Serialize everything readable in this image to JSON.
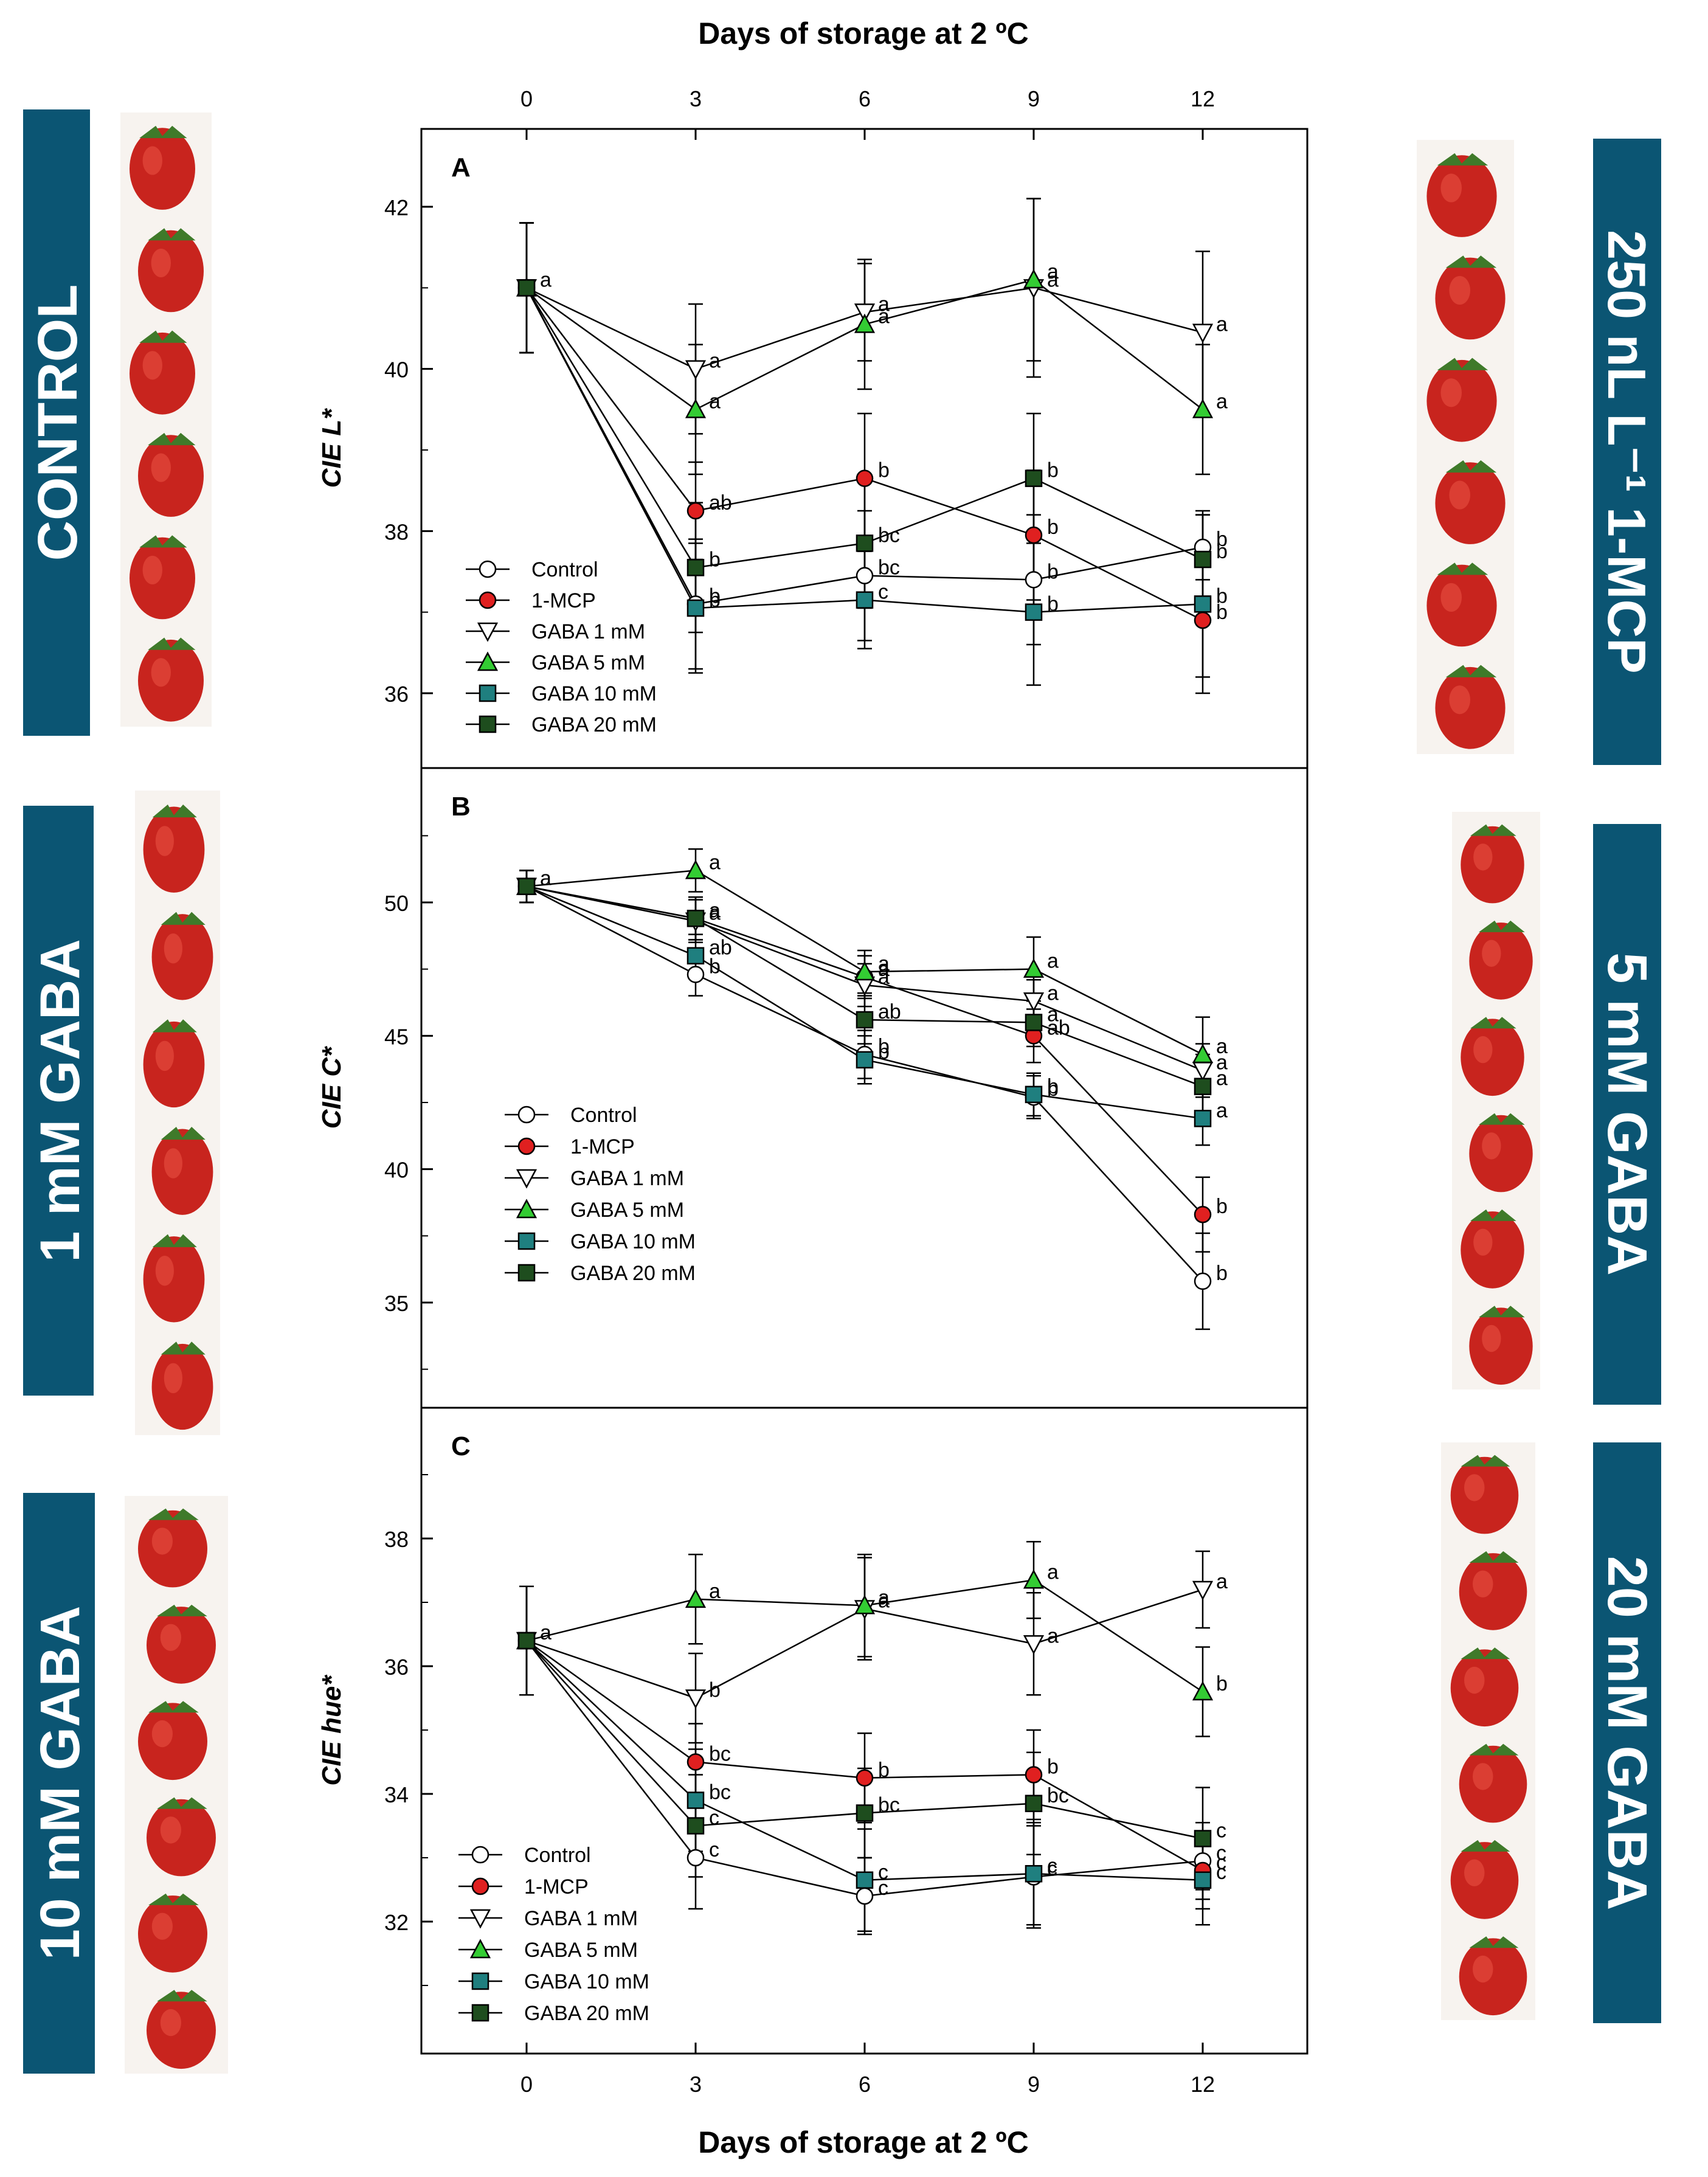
{
  "figure": {
    "top_axis_title": "Days of storage at 2 ºC",
    "bottom_axis_title": "Days of storage at 2 ºC"
  },
  "banners": [
    {
      "id": "control",
      "label": "CONTROL"
    },
    {
      "id": "mcp",
      "label": "250 nL L⁻¹ 1-MCP"
    },
    {
      "id": "gaba1",
      "label": "1 mM GABA"
    },
    {
      "id": "gaba5",
      "label": "5 mM GABA"
    },
    {
      "id": "gaba10",
      "label": "10 mM GABA"
    },
    {
      "id": "gaba20",
      "label": "20 mM GABA"
    }
  ],
  "colors": {
    "banner": "#0b5573",
    "control": "#ffffff",
    "mcp": "#e02020",
    "gaba1": "#ffffff",
    "gaba5": "#33cc33",
    "gaba10": "#1f7f7f",
    "gaba20": "#1e4d1e",
    "strawberry": "#c8241e"
  },
  "legend_labels": [
    "Control",
    "1-MCP",
    "GABA 1 mM",
    "GABA 5 mM",
    "GABA 10 mM",
    "GABA 20 mM"
  ],
  "chart_data": [
    {
      "type": "line",
      "panel": "A",
      "ylabel": "CIE L*",
      "x": [
        0,
        3,
        6,
        9,
        12
      ],
      "xticks": [
        "0",
        "3",
        "6",
        "9",
        "12"
      ],
      "ylim": [
        35,
        43
      ],
      "yticks": [
        "36",
        "38",
        "40",
        "42"
      ],
      "series": [
        {
          "name": "Control",
          "marker": "circle",
          "values": [
            41.0,
            37.1,
            37.45,
            37.4,
            37.8
          ],
          "err": [
            0.8,
            0.8,
            0.8,
            0.8,
            0.4
          ],
          "letters": [
            "a",
            "b",
            "bc",
            "b",
            "b"
          ]
        },
        {
          "name": "1-MCP",
          "marker": "circle",
          "values": [
            41.0,
            38.25,
            38.65,
            37.95,
            36.9
          ],
          "err": [
            0.8,
            0.6,
            0.8,
            0.8,
            0.7
          ],
          "letters": [
            "",
            "ab",
            "b",
            "b",
            "b"
          ]
        },
        {
          "name": "GABA 1 mM",
          "marker": "triangle-down",
          "values": [
            41.0,
            40.0,
            40.7,
            41.0,
            40.45
          ],
          "err": [
            0.8,
            0.8,
            0.6,
            1.1,
            1.0
          ],
          "letters": [
            "",
            "a",
            "a",
            "a",
            "a"
          ]
        },
        {
          "name": "GABA 5 mM",
          "marker": "triangle-up",
          "values": [
            41.0,
            39.5,
            40.55,
            41.1,
            39.5
          ],
          "err": [
            0.8,
            0.8,
            0.8,
            1.0,
            0.8
          ],
          "letters": [
            "",
            "a",
            "a",
            "a",
            "a"
          ]
        },
        {
          "name": "GABA 10 mM",
          "marker": "square",
          "values": [
            41.0,
            37.05,
            37.15,
            37.0,
            37.1
          ],
          "err": [
            0.8,
            0.8,
            0.6,
            0.9,
            1.1
          ],
          "letters": [
            "",
            "b",
            "c",
            "b",
            "b"
          ]
        },
        {
          "name": "GABA 20 mM",
          "marker": "square",
          "values": [
            41.0,
            37.55,
            37.85,
            38.65,
            37.65
          ],
          "err": [
            0.8,
            0.8,
            0.8,
            0.8,
            0.6
          ],
          "letters": [
            "",
            "b",
            "bc",
            "b",
            "b"
          ]
        }
      ]
    },
    {
      "type": "line",
      "panel": "B",
      "ylabel": "CIE C*",
      "x": [
        0,
        3,
        6,
        9,
        12
      ],
      "xticks": [
        "0",
        "3",
        "6",
        "9",
        "12"
      ],
      "ylim": [
        31,
        53
      ],
      "yticks": [
        "35",
        "40",
        "45",
        "50"
      ],
      "series": [
        {
          "name": "Control",
          "marker": "circle",
          "values": [
            50.6,
            47.3,
            44.3,
            42.7,
            35.8
          ],
          "err": [
            0.6,
            0.8,
            0.9,
            0.8,
            1.8
          ],
          "letters": [
            "a",
            "b",
            "b",
            "b",
            "b"
          ]
        },
        {
          "name": "1-MCP",
          "marker": "circle",
          "values": [
            50.6,
            49.4,
            47.2,
            45.0,
            38.3
          ],
          "err": [
            0.6,
            0.8,
            0.8,
            1.0,
            1.4
          ],
          "letters": [
            "",
            "a",
            "a",
            "ab",
            "b"
          ]
        },
        {
          "name": "GABA 1 mM",
          "marker": "triangle-down",
          "values": [
            50.6,
            49.3,
            46.9,
            46.3,
            43.7
          ],
          "err": [
            0.6,
            0.8,
            0.8,
            0.8,
            1.0
          ],
          "letters": [
            "",
            "a",
            "a",
            "a",
            "a"
          ]
        },
        {
          "name": "GABA 5 mM",
          "marker": "triangle-up",
          "values": [
            50.6,
            51.2,
            47.4,
            47.5,
            44.3
          ],
          "err": [
            0.6,
            0.8,
            0.8,
            1.2,
            1.4
          ],
          "letters": [
            "",
            "a",
            "a",
            "a",
            "a"
          ]
        },
        {
          "name": "GABA 10 mM",
          "marker": "square",
          "values": [
            50.6,
            48.0,
            44.1,
            42.8,
            41.9
          ],
          "err": [
            0.6,
            0.8,
            0.9,
            0.8,
            1.0
          ],
          "letters": [
            "",
            "ab",
            "b",
            "b",
            "a"
          ]
        },
        {
          "name": "GABA 20 mM",
          "marker": "square",
          "values": [
            50.6,
            49.4,
            45.6,
            45.5,
            43.1
          ],
          "err": [
            0.6,
            0.8,
            0.9,
            0.9,
            1.2
          ],
          "letters": [
            "",
            "a",
            "ab",
            "a",
            "a"
          ]
        }
      ]
    },
    {
      "type": "line",
      "panel": "C",
      "ylabel": "CIE hue*",
      "x": [
        0,
        3,
        6,
        9,
        12
      ],
      "xticks": [
        "0",
        "3",
        "6",
        "9",
        "12"
      ],
      "ylim": [
        30,
        40
      ],
      "yticks": [
        "32",
        "34",
        "36",
        "38"
      ],
      "series": [
        {
          "name": "Control",
          "marker": "circle",
          "values": [
            36.4,
            33.0,
            32.4,
            32.7,
            32.95
          ],
          "err": [
            0.85,
            0.8,
            0.6,
            0.8,
            0.6
          ],
          "letters": [
            "a",
            "c",
            "c",
            "c",
            "c"
          ]
        },
        {
          "name": "1-MCP",
          "marker": "circle",
          "values": [
            36.4,
            34.5,
            34.25,
            34.3,
            32.8
          ],
          "err": [
            0.85,
            0.6,
            0.7,
            0.7,
            0.6
          ],
          "letters": [
            "",
            "bc",
            "b",
            "b",
            "c"
          ]
        },
        {
          "name": "GABA 1 mM",
          "marker": "triangle-down",
          "values": [
            36.4,
            35.5,
            36.9,
            36.35,
            37.2
          ],
          "err": [
            0.85,
            0.7,
            0.8,
            0.8,
            0.6
          ],
          "letters": [
            "",
            "b",
            "a",
            "a",
            "a"
          ]
        },
        {
          "name": "GABA 5 mM",
          "marker": "triangle-up",
          "values": [
            36.4,
            37.05,
            36.95,
            37.35,
            35.6
          ],
          "err": [
            0.85,
            0.7,
            0.8,
            0.6,
            0.7
          ],
          "letters": [
            "",
            "a",
            "a",
            "a",
            "b"
          ]
        },
        {
          "name": "GABA 10 mM",
          "marker": "square",
          "values": [
            36.4,
            33.9,
            32.65,
            32.75,
            32.65
          ],
          "err": [
            0.85,
            0.8,
            0.8,
            0.8,
            0.7
          ],
          "letters": [
            "",
            "bc",
            "c",
            "c",
            "c"
          ]
        },
        {
          "name": "GABA 20 mM",
          "marker": "square",
          "values": [
            36.4,
            33.5,
            33.7,
            33.85,
            33.3
          ],
          "err": [
            0.85,
            0.8,
            0.7,
            0.8,
            0.8
          ],
          "letters": [
            "",
            "c",
            "bc",
            "bc",
            "c"
          ]
        }
      ]
    }
  ]
}
